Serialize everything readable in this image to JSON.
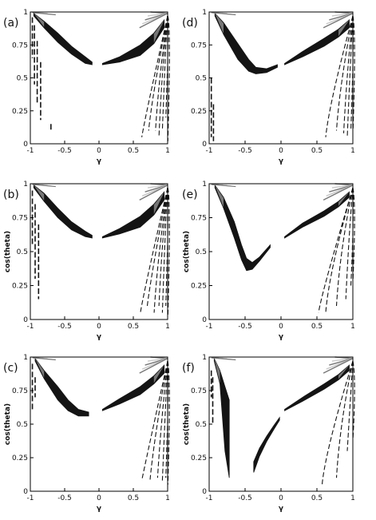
{
  "chart_data": [
    {
      "type": "area",
      "panel_label": "(a)",
      "xlabel": "γ",
      "ylabel": "",
      "xlim": [
        -1,
        1
      ],
      "ylim": [
        0,
        1
      ],
      "xticks": [
        "-1",
        "-0.5",
        "0",
        "0.5",
        "1"
      ],
      "yticks": [
        "0",
        "0.25",
        "0.5",
        "0.75",
        "1"
      ],
      "left_band": {
        "x": [
          -0.95,
          -0.8,
          -0.6,
          -0.4,
          -0.2,
          -0.1
        ],
        "upper": [
          0.99,
          0.93,
          0.84,
          0.74,
          0.66,
          0.62
        ],
        "lower": [
          0.97,
          0.88,
          0.77,
          0.68,
          0.61,
          0.6
        ]
      },
      "right_band": {
        "x": [
          0.05,
          0.3,
          0.6,
          0.8,
          0.95
        ],
        "upper": [
          0.61,
          0.66,
          0.75,
          0.84,
          0.94
        ],
        "lower": [
          0.6,
          0.62,
          0.67,
          0.76,
          0.88
        ]
      },
      "left_streaks": [
        {
          "x": -0.97,
          "y_top": 0.96,
          "y_bot": 0.65
        },
        {
          "x": -0.94,
          "y_top": 0.9,
          "y_bot": 0.45
        },
        {
          "x": -0.9,
          "y_top": 0.78,
          "y_bot": 0.3
        },
        {
          "x": -0.85,
          "y_top": 0.62,
          "y_bot": 0.18
        },
        {
          "x": -0.7,
          "y_top": 0.15,
          "y_bot": 0.1
        }
      ],
      "right_streaks": [
        {
          "x": 0.98,
          "y_top": 0.92,
          "y_bot": 0.02
        },
        {
          "x": 0.95,
          "y_top": 0.85,
          "y_bot": 0.2
        },
        {
          "x": 0.9,
          "y_top": 0.75,
          "y_bot": 0.1
        },
        {
          "x": 0.85,
          "y_top": 0.6,
          "y_bot": 0.05
        },
        {
          "x": 0.8,
          "y_top": 0.5,
          "y_bot": 0.1
        },
        {
          "x": 0.7,
          "y_top": 0.35,
          "y_bot": 0.1
        },
        {
          "x": 0.6,
          "y_top": 0.2,
          "y_bot": 0.05
        }
      ]
    },
    {
      "type": "area",
      "panel_label": "(d)",
      "xlabel": "γ",
      "ylabel": "",
      "xlim": [
        -1,
        1
      ],
      "ylim": [
        0,
        1
      ],
      "xticks": [
        "-1",
        "-0.5",
        "0",
        "0.5",
        "1"
      ],
      "yticks": [
        "0",
        "0.25",
        "0.5",
        "0.75",
        "1"
      ],
      "left_band": {
        "x": [
          -0.92,
          -0.8,
          -0.6,
          -0.45,
          -0.35,
          -0.2,
          -0.05
        ],
        "upper": [
          0.99,
          0.92,
          0.76,
          0.64,
          0.58,
          0.57,
          0.6
        ],
        "lower": [
          0.97,
          0.83,
          0.64,
          0.55,
          0.53,
          0.54,
          0.58
        ]
      },
      "right_band": {
        "x": [
          0.05,
          0.3,
          0.6,
          0.8,
          0.95
        ],
        "upper": [
          0.61,
          0.7,
          0.8,
          0.87,
          0.94
        ],
        "lower": [
          0.6,
          0.66,
          0.74,
          0.81,
          0.88
        ]
      },
      "left_streaks": [
        {
          "x": -0.97,
          "y_top": 0.5,
          "y_bot": 0.05
        },
        {
          "x": -0.94,
          "y_top": 0.3,
          "y_bot": 0.02
        }
      ],
      "right_streaks": [
        {
          "x": 0.98,
          "y_top": 0.85,
          "y_bot": 0.1
        },
        {
          "x": 0.95,
          "y_top": 0.75,
          "y_bot": 0.1
        },
        {
          "x": 0.9,
          "y_top": 0.65,
          "y_bot": 0.05
        },
        {
          "x": 0.85,
          "y_top": 0.55,
          "y_bot": 0.08
        },
        {
          "x": 0.75,
          "y_top": 0.45,
          "y_bot": 0.1
        },
        {
          "x": 0.6,
          "y_top": 0.3,
          "y_bot": 0.05
        }
      ]
    },
    {
      "type": "area",
      "panel_label": "(b)",
      "xlabel": "γ",
      "ylabel": "cos(theta)",
      "xlim": [
        -1,
        1
      ],
      "ylim": [
        0,
        1
      ],
      "xticks": [
        "-1",
        "-0.5",
        "0",
        "0.5",
        "1"
      ],
      "yticks": [
        "0",
        "0.25",
        "0.5",
        "0.75",
        "1"
      ],
      "left_band": {
        "x": [
          -0.95,
          -0.8,
          -0.6,
          -0.4,
          -0.2,
          -0.1
        ],
        "upper": [
          0.99,
          0.93,
          0.82,
          0.72,
          0.65,
          0.62
        ],
        "lower": [
          0.97,
          0.87,
          0.75,
          0.66,
          0.61,
          0.6
        ]
      },
      "right_band": {
        "x": [
          0.05,
          0.3,
          0.6,
          0.8,
          0.95
        ],
        "upper": [
          0.61,
          0.67,
          0.76,
          0.85,
          0.94
        ],
        "lower": [
          0.6,
          0.63,
          0.68,
          0.77,
          0.88
        ]
      },
      "left_streaks": [
        {
          "x": -0.97,
          "y_top": 0.95,
          "y_bot": 0.55
        },
        {
          "x": -0.93,
          "y_top": 0.85,
          "y_bot": 0.3
        },
        {
          "x": -0.88,
          "y_top": 0.7,
          "y_bot": 0.15
        }
      ],
      "right_streaks": [
        {
          "x": 0.98,
          "y_top": 0.9,
          "y_bot": 0.02
        },
        {
          "x": 0.95,
          "y_top": 0.85,
          "y_bot": 0.1
        },
        {
          "x": 0.9,
          "y_top": 0.75,
          "y_bot": 0.05
        },
        {
          "x": 0.85,
          "y_top": 0.6,
          "y_bot": 0.1
        },
        {
          "x": 0.78,
          "y_top": 0.45,
          "y_bot": 0.05
        },
        {
          "x": 0.68,
          "y_top": 0.3,
          "y_bot": 0.1
        },
        {
          "x": 0.58,
          "y_top": 0.2,
          "y_bot": 0.05
        }
      ]
    },
    {
      "type": "area",
      "panel_label": "(e)",
      "xlabel": "γ",
      "ylabel": "cos(theta)",
      "xlim": [
        -1,
        1
      ],
      "ylim": [
        0,
        1
      ],
      "xticks": [
        "-1",
        "-0.5",
        "0",
        "0.5",
        "1"
      ],
      "yticks": [
        "0",
        "0.25",
        "0.5",
        "0.75",
        "1"
      ],
      "left_band": {
        "x": [
          -0.92,
          -0.8,
          -0.65,
          -0.55,
          -0.48,
          -0.4,
          -0.3,
          -0.15
        ],
        "upper": [
          0.99,
          0.9,
          0.72,
          0.55,
          0.45,
          0.42,
          0.46,
          0.55
        ],
        "lower": [
          0.97,
          0.82,
          0.6,
          0.44,
          0.36,
          0.37,
          0.43,
          0.53
        ]
      },
      "right_band": {
        "x": [
          0.05,
          0.3,
          0.6,
          0.8,
          0.95
        ],
        "upper": [
          0.61,
          0.71,
          0.8,
          0.87,
          0.94
        ],
        "lower": [
          0.6,
          0.68,
          0.76,
          0.83,
          0.9
        ]
      },
      "left_streaks": [],
      "right_streaks": [
        {
          "x": 0.98,
          "y_top": 0.85,
          "y_bot": 0.3
        },
        {
          "x": 0.95,
          "y_top": 0.75,
          "y_bot": 0.25
        },
        {
          "x": 0.88,
          "y_top": 0.65,
          "y_bot": 0.15
        },
        {
          "x": 0.75,
          "y_top": 0.5,
          "y_bot": 0.1
        },
        {
          "x": 0.6,
          "y_top": 0.35,
          "y_bot": 0.05
        },
        {
          "x": 0.5,
          "y_top": 0.2,
          "y_bot": 0.05
        }
      ]
    },
    {
      "type": "area",
      "panel_label": "(c)",
      "xlabel": "γ",
      "ylabel": "cos(theta)",
      "xlim": [
        -1,
        1
      ],
      "ylim": [
        0,
        1
      ],
      "xticks": [
        "-1",
        "-0.5",
        "0",
        "0.5",
        "1"
      ],
      "yticks": [
        "0",
        "0.25",
        "0.5",
        "0.75",
        "1"
      ],
      "left_band": {
        "x": [
          -0.93,
          -0.8,
          -0.6,
          -0.45,
          -0.3,
          -0.15
        ],
        "upper": [
          0.99,
          0.9,
          0.78,
          0.68,
          0.61,
          0.59
        ],
        "lower": [
          0.97,
          0.84,
          0.68,
          0.6,
          0.56,
          0.56
        ]
      },
      "right_band": {
        "x": [
          0.05,
          0.3,
          0.6,
          0.8,
          0.95
        ],
        "upper": [
          0.61,
          0.69,
          0.78,
          0.86,
          0.94
        ],
        "lower": [
          0.6,
          0.65,
          0.72,
          0.8,
          0.88
        ]
      },
      "left_streaks": [
        {
          "x": -0.97,
          "y_top": 0.95,
          "y_bot": 0.6
        },
        {
          "x": -0.93,
          "y_top": 0.85,
          "y_bot": 0.7
        }
      ],
      "right_streaks": [
        {
          "x": 0.98,
          "y_top": 0.85,
          "y_bot": 0.05
        },
        {
          "x": 0.95,
          "y_top": 0.75,
          "y_bot": 0.1
        },
        {
          "x": 0.9,
          "y_top": 0.65,
          "y_bot": 0.08
        },
        {
          "x": 0.83,
          "y_top": 0.5,
          "y_bot": 0.1
        },
        {
          "x": 0.72,
          "y_top": 0.35,
          "y_bot": 0.08
        },
        {
          "x": 0.6,
          "y_top": 0.2,
          "y_bot": 0.08
        }
      ]
    },
    {
      "type": "area",
      "panel_label": "(f)",
      "xlabel": "γ",
      "ylabel": "cos(theta)",
      "xlim": [
        -1,
        1
      ],
      "ylim": [
        0,
        1
      ],
      "xticks": [
        "-1",
        "-0.5",
        "0",
        "0.5",
        "1"
      ],
      "yticks": [
        "0",
        "0.25",
        "0.5",
        "0.75",
        "1"
      ],
      "left_band": {
        "x": [
          -0.93,
          -0.85,
          -0.78,
          -0.72
        ],
        "upper": [
          0.99,
          0.9,
          0.78,
          0.68
        ],
        "lower": [
          0.97,
          0.8,
          0.3,
          0.1
        ]
      },
      "right_band": {
        "x": [
          0.05,
          0.3,
          0.6,
          0.8,
          0.95
        ],
        "upper": [
          0.61,
          0.7,
          0.8,
          0.87,
          0.94
        ],
        "lower": [
          0.6,
          0.67,
          0.76,
          0.83,
          0.9
        ]
      },
      "left_streaks": [
        {
          "x": -0.97,
          "y_top": 0.9,
          "y_bot": 0.7
        },
        {
          "x": -0.95,
          "y_top": 0.85,
          "y_bot": 0.5
        }
      ],
      "middle_band": {
        "x": [
          -0.38,
          -0.3,
          -0.2,
          -0.1,
          -0.02
        ],
        "upper": [
          0.22,
          0.32,
          0.41,
          0.49,
          0.55
        ],
        "lower": [
          0.14,
          0.26,
          0.37,
          0.46,
          0.53
        ]
      },
      "right_streaks": [
        {
          "x": 0.98,
          "y_top": 0.85,
          "y_bot": 0.4
        },
        {
          "x": 0.9,
          "y_top": 0.7,
          "y_bot": 0.3
        },
        {
          "x": 0.75,
          "y_top": 0.5,
          "y_bot": 0.1
        },
        {
          "x": 0.55,
          "y_top": 0.3,
          "y_bot": 0.05
        }
      ]
    }
  ],
  "colors": {
    "fill": "#141414",
    "grey": "#777777",
    "light": "#c8c8c8",
    "axis": "#000000"
  }
}
